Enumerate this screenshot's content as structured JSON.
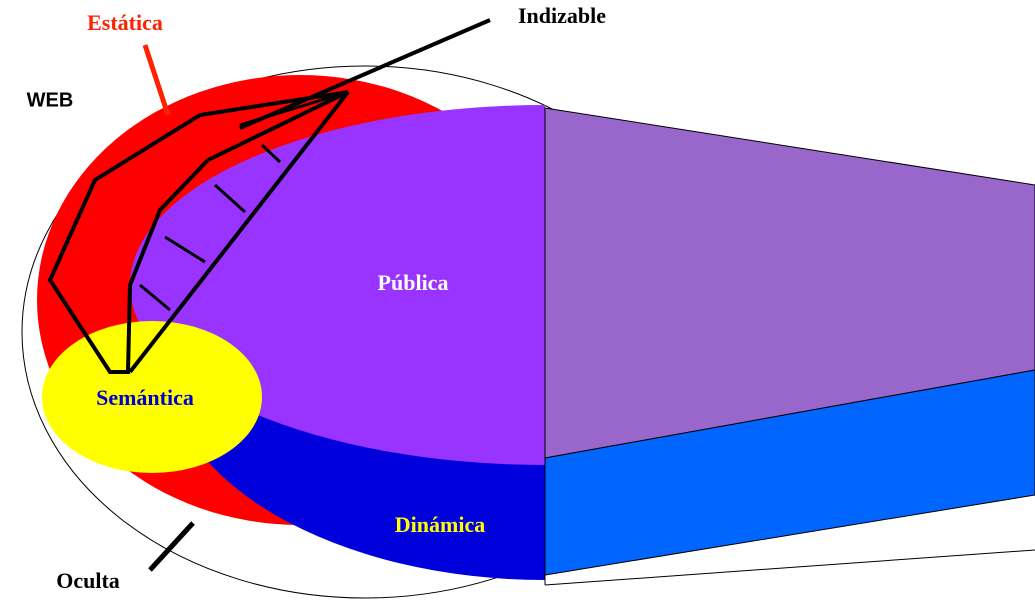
{
  "labels": {
    "estatica": "Estática",
    "indizable": "Indizable",
    "web": "WEB",
    "publica": "Pública",
    "semantica": "Semántica",
    "dinamica": "Dinámica",
    "oculta": "Oculta"
  }
}
